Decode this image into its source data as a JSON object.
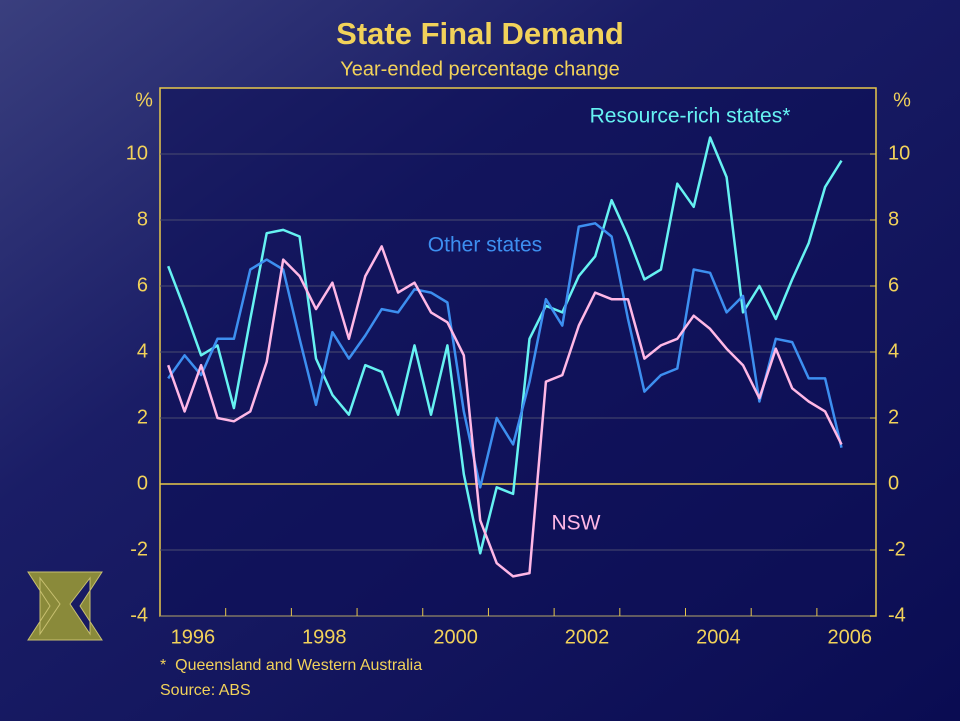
{
  "chart_data": {
    "type": "line",
    "title": "State Final Demand",
    "subtitle": "Year-ended percentage change",
    "y_label": "%",
    "footnote": "*  Queensland and Western Australia",
    "source": "Source: ABS",
    "x": [
      1996.125,
      1996.375,
      1996.625,
      1996.875,
      1997.125,
      1997.375,
      1997.625,
      1997.875,
      1998.125,
      1998.375,
      1998.625,
      1998.875,
      1999.125,
      1999.375,
      1999.625,
      1999.875,
      2000.125,
      2000.375,
      2000.625,
      2000.875,
      2001.125,
      2001.375,
      2001.625,
      2001.875,
      2002.125,
      2002.375,
      2002.625,
      2002.875,
      2003.125,
      2003.375,
      2003.625,
      2003.875,
      2004.125,
      2004.375,
      2004.625,
      2004.875,
      2005.125,
      2005.375,
      2005.625,
      2005.875,
      2006.125,
      2006.375
    ],
    "xlim": [
      1996,
      2006.9
    ],
    "xticks": [
      1996,
      1998,
      2000,
      2002,
      2004,
      2006
    ],
    "x_minor_ticks": [
      1997,
      1999,
      2001,
      2003,
      2005
    ],
    "ylim": [
      -4,
      12
    ],
    "yticks": [
      -4,
      -2,
      0,
      2,
      4,
      6,
      8,
      10
    ],
    "y2lim": [
      -4,
      12
    ],
    "y2ticks": [
      -4,
      -2,
      0,
      2,
      4,
      6,
      8,
      10
    ],
    "grid": true,
    "series": [
      {
        "name": "Resource-rich states*",
        "color": "#66f2f2",
        "values": [
          6.6,
          5.3,
          3.9,
          4.2,
          2.3,
          5.0,
          7.6,
          7.7,
          7.5,
          3.8,
          2.7,
          2.1,
          3.6,
          3.4,
          2.1,
          4.2,
          2.1,
          4.2,
          0.3,
          -2.1,
          -0.1,
          -0.3,
          4.4,
          5.4,
          5.2,
          6.3,
          6.9,
          8.6,
          7.5,
          6.2,
          6.5,
          9.1,
          8.4,
          10.5,
          9.3,
          5.2,
          6.0,
          5.0,
          6.2,
          7.3,
          9.0,
          9.8
        ]
      },
      {
        "name": "Other states",
        "color": "#3d8ff0",
        "values": [
          3.2,
          3.9,
          3.3,
          4.4,
          4.4,
          6.5,
          6.8,
          6.5,
          4.4,
          2.4,
          4.6,
          3.8,
          4.5,
          5.3,
          5.2,
          5.9,
          5.8,
          5.5,
          2.2,
          -0.1,
          2.0,
          1.2,
          3.1,
          5.6,
          4.8,
          7.8,
          7.9,
          7.5,
          5.0,
          2.8,
          3.3,
          3.5,
          6.5,
          6.4,
          5.2,
          5.7,
          2.5,
          4.4,
          4.3,
          3.2,
          3.2,
          1.1
        ]
      },
      {
        "name": "NSW",
        "color": "#ffb8e6",
        "values": [
          3.6,
          2.2,
          3.6,
          2.0,
          1.9,
          2.2,
          3.7,
          6.8,
          6.3,
          5.3,
          6.1,
          4.4,
          6.3,
          7.2,
          5.8,
          6.1,
          5.2,
          4.9,
          3.9,
          -1.1,
          -2.4,
          -2.8,
          -2.7,
          3.1,
          3.3,
          4.8,
          5.8,
          5.6,
          5.6,
          3.8,
          4.2,
          4.4,
          5.1,
          4.7,
          4.1,
          3.6,
          2.6,
          4.1,
          2.9,
          2.5,
          2.2,
          1.2
        ]
      }
    ]
  }
}
